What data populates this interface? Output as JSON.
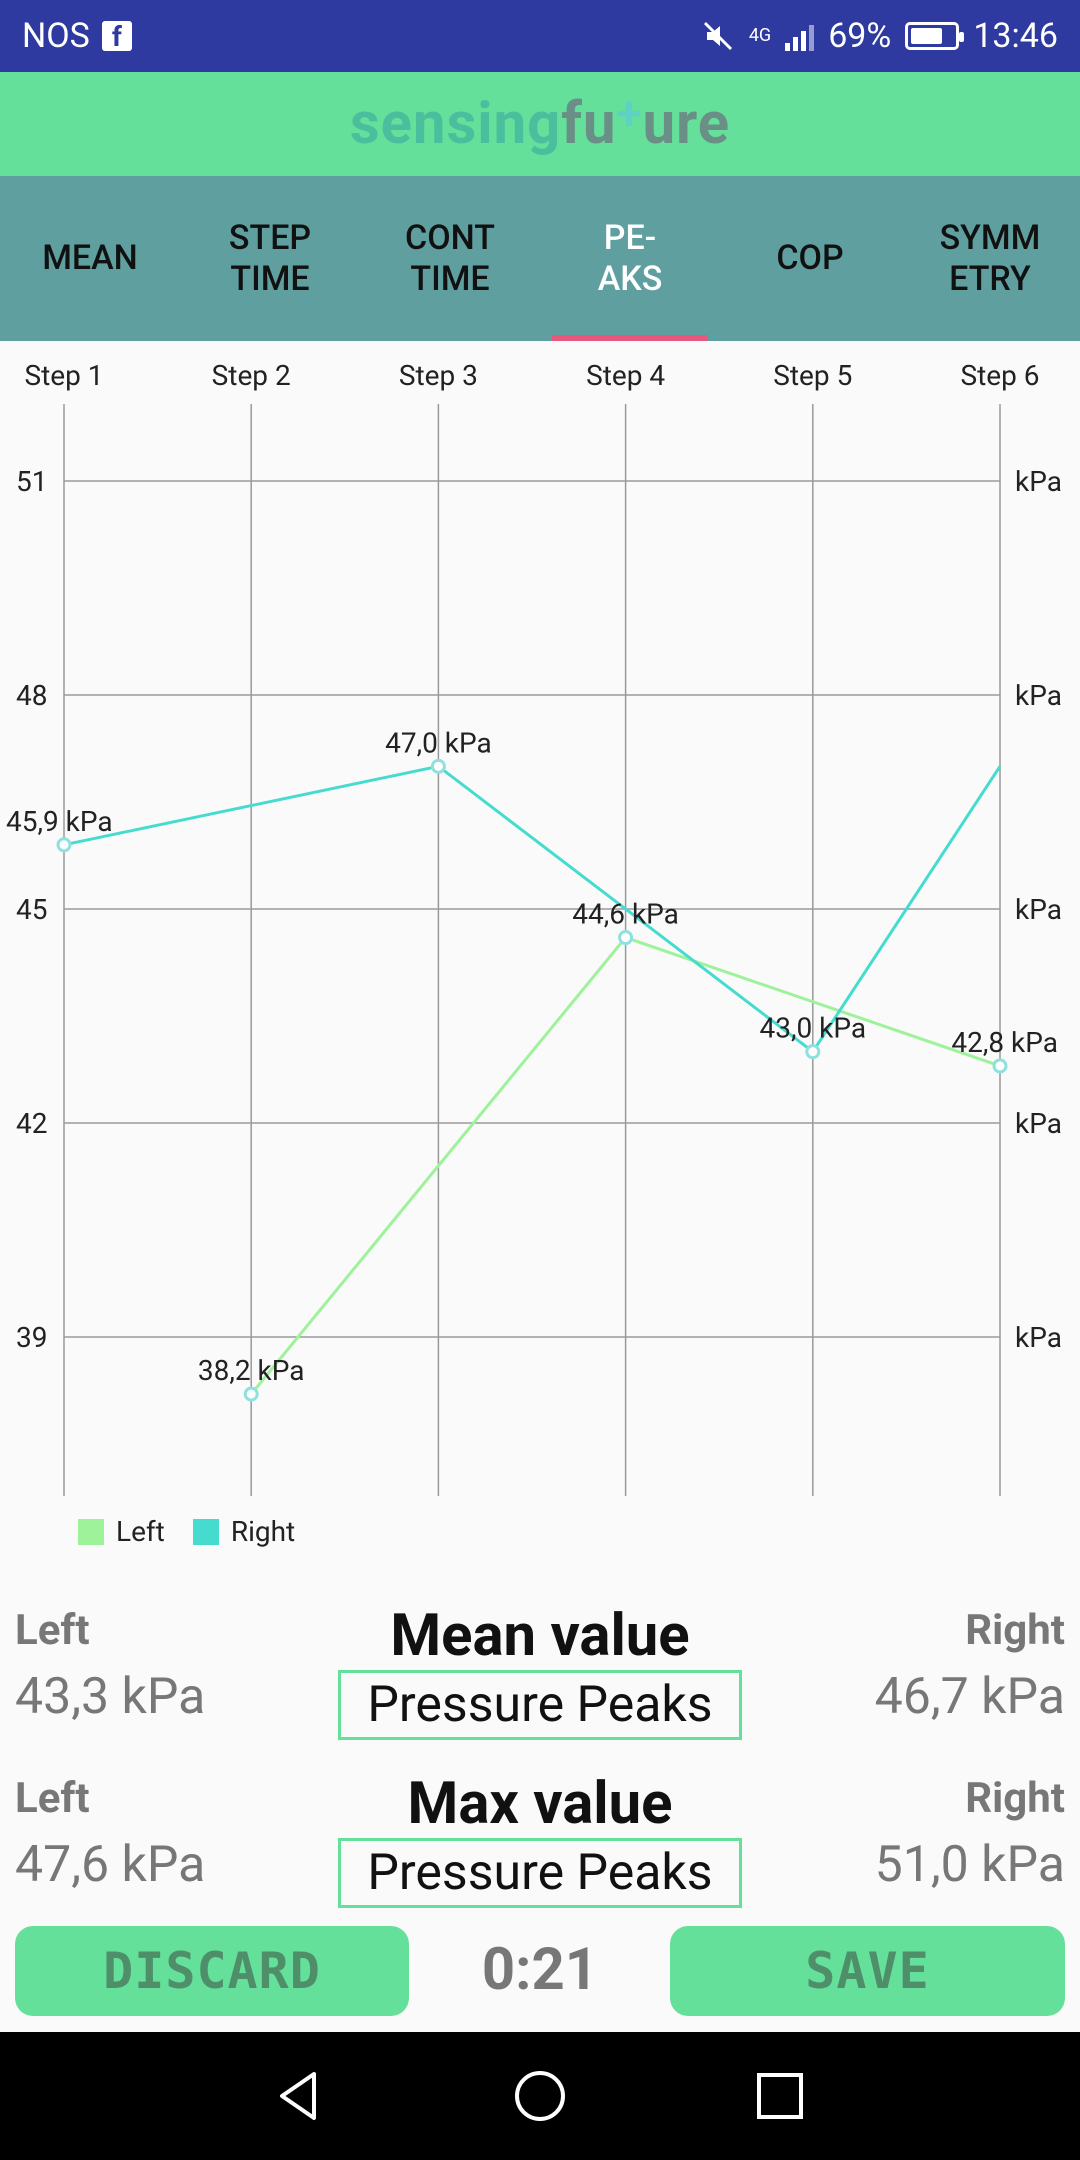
{
  "status_bar": {
    "carrier": "NOS",
    "network": "4G",
    "battery": "69%",
    "battery_level": 0.69,
    "time": "13:46",
    "icons": [
      "facebook-icon",
      "mute-icon",
      "signal-icon",
      "battery-icon"
    ]
  },
  "app": {
    "logo_part1": "sensing",
    "logo_part2": "fu",
    "logo_plus": "+",
    "logo_part3": "ure"
  },
  "tabs": [
    {
      "label": "MEAN",
      "active": false
    },
    {
      "label": "STEP\nTIME",
      "active": false
    },
    {
      "label": "CONT\nTIME",
      "active": false
    },
    {
      "label": "PE-\nAKS",
      "active": true
    },
    {
      "label": "COP",
      "active": false
    },
    {
      "label": "SYMM\nETRY",
      "active": false
    }
  ],
  "chart_data": {
    "type": "line",
    "categories": [
      "Step 1",
      "Step 2",
      "Step 3",
      "Step 4",
      "Step 5",
      "Step 6"
    ],
    "ylim": [
      37.2,
      52.2
    ],
    "y_ticks": [
      39,
      42,
      45,
      48,
      51
    ],
    "y_tick_labels": [
      "39",
      "42",
      "45",
      "48",
      "51"
    ],
    "right_axis_unit": "kPa",
    "grid": true,
    "legend_position": "bottom-left",
    "series": [
      {
        "name": "Left",
        "color": "#9ef29a",
        "values": [
          null,
          38.2,
          null,
          44.6,
          null,
          42.8
        ]
      },
      {
        "name": "Right",
        "color": "#45dccf",
        "values": [
          45.9,
          null,
          47.0,
          null,
          43.0,
          47.0
        ]
      }
    ],
    "data_labels": [
      {
        "step": 0,
        "value": 45.9,
        "text": "45,9 kPa"
      },
      {
        "step": 1,
        "value": 38.2,
        "text": "38,2 kPa"
      },
      {
        "step": 2,
        "value": 47.0,
        "text": "47,0 kPa"
      },
      {
        "step": 3,
        "value": 44.6,
        "text": "44,6 kPa"
      },
      {
        "step": 4,
        "value": 43.0,
        "text": "43,0 kPa"
      },
      {
        "step": 5,
        "value": 42.8,
        "text": "42,8 kPa"
      }
    ]
  },
  "legend": {
    "left": "Left",
    "right": "Right",
    "left_color": "#9ef29a",
    "right_color": "#45dccf"
  },
  "mean": {
    "left_label": "Left",
    "right_label": "Right",
    "title": "Mean value",
    "metric": "Pressure Peaks",
    "left_value": "43,3 kPa",
    "right_value": "46,7 kPa"
  },
  "max": {
    "left_label": "Left",
    "right_label": "Right",
    "title": "Max value",
    "metric": "Pressure Peaks",
    "left_value": "47,6 kPa",
    "right_value": "51,0 kPa"
  },
  "actions": {
    "discard": "DISCARD",
    "timer": "0:21",
    "save": "SAVE"
  }
}
